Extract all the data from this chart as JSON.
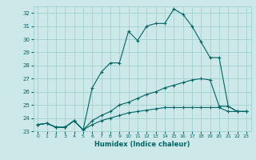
{
  "xlabel": "Humidex (Indice chaleur)",
  "ylabel": "",
  "xlim": [
    -0.5,
    23.5
  ],
  "ylim": [
    23,
    32.5
  ],
  "yticks": [
    23,
    24,
    25,
    26,
    27,
    28,
    29,
    30,
    31,
    32
  ],
  "xticks": [
    0,
    1,
    2,
    3,
    4,
    5,
    6,
    7,
    8,
    9,
    10,
    11,
    12,
    13,
    14,
    15,
    16,
    17,
    18,
    19,
    20,
    21,
    22,
    23
  ],
  "bg_color": "#cce8e8",
  "grid_color": "#99cccc",
  "line_color": "#006666",
  "line1_x": [
    0,
    1,
    2,
    3,
    4,
    5,
    6,
    7,
    8,
    9,
    10,
    11,
    12,
    13,
    14,
    15,
    16,
    17,
    18,
    19,
    20,
    21,
    22,
    23
  ],
  "line1_y": [
    23.5,
    23.6,
    23.3,
    23.3,
    23.8,
    23.1,
    26.3,
    27.5,
    28.2,
    28.2,
    30.6,
    29.9,
    31.0,
    31.2,
    31.2,
    32.3,
    31.9,
    31.0,
    29.8,
    28.6,
    28.6,
    24.9,
    24.5,
    24.5
  ],
  "line2_x": [
    0,
    1,
    2,
    3,
    4,
    5,
    6,
    7,
    8,
    9,
    10,
    11,
    12,
    13,
    14,
    15,
    16,
    17,
    18,
    19,
    20,
    21,
    22,
    23
  ],
  "line2_y": [
    23.5,
    23.6,
    23.3,
    23.3,
    23.8,
    23.1,
    23.8,
    24.2,
    24.5,
    25.0,
    25.2,
    25.5,
    25.8,
    26.0,
    26.3,
    26.5,
    26.7,
    26.9,
    27.0,
    26.9,
    24.9,
    24.9,
    24.5,
    24.5
  ],
  "line3_x": [
    0,
    1,
    2,
    3,
    4,
    5,
    6,
    7,
    8,
    9,
    10,
    11,
    12,
    13,
    14,
    15,
    16,
    17,
    18,
    19,
    20,
    21,
    22,
    23
  ],
  "line3_y": [
    23.5,
    23.6,
    23.3,
    23.3,
    23.8,
    23.1,
    23.5,
    23.8,
    24.0,
    24.2,
    24.4,
    24.5,
    24.6,
    24.7,
    24.8,
    24.8,
    24.8,
    24.8,
    24.8,
    24.8,
    24.8,
    24.5,
    24.5,
    24.5
  ]
}
